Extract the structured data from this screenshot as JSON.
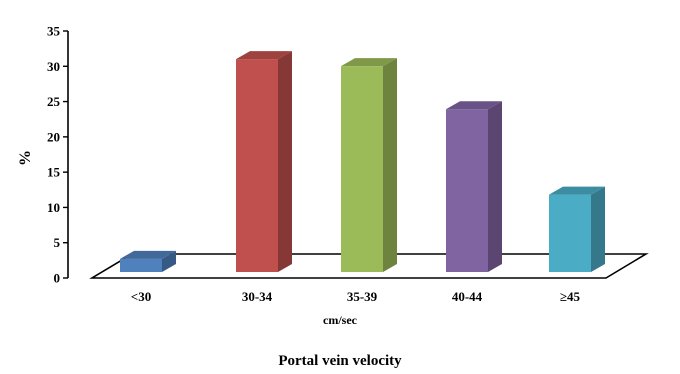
{
  "chart_data": {
    "type": "bar",
    "categories": [
      "<30",
      "30-34",
      "35-39",
      "40-44",
      "≥45"
    ],
    "values": [
      3,
      31.3,
      30.3,
      24.2,
      12.1
    ],
    "colors": [
      "#4F81BD",
      "#C0504D",
      "#9BBB59",
      "#8064A2",
      "#4BACC6"
    ],
    "title": "Portal  vein velocity",
    "xlabel": "cm/sec",
    "ylabel": "%",
    "ylim": [
      0,
      35
    ],
    "yticks": [
      "0",
      "5",
      "10",
      "15",
      "20",
      "25",
      "30",
      "35"
    ],
    "grid": false,
    "legend": "none"
  }
}
